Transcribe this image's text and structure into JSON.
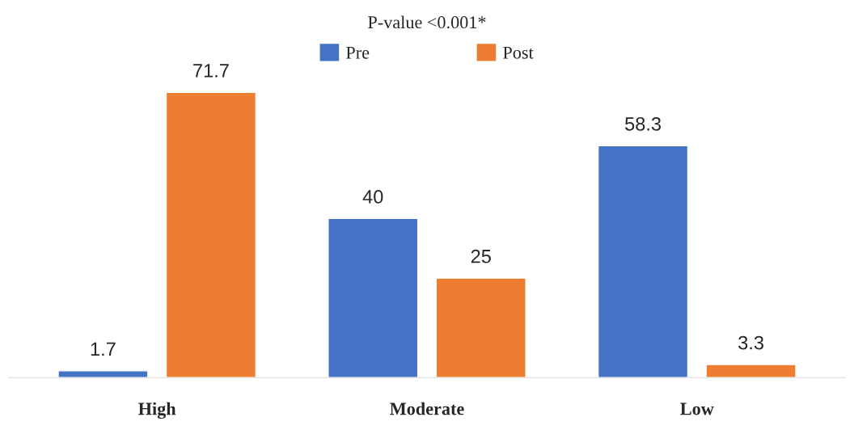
{
  "chart_data": {
    "type": "bar",
    "title": "P-value <0.001*",
    "categories": [
      "High",
      "Moderate",
      "Low"
    ],
    "series": [
      {
        "name": "Pre",
        "color": "#4472c4",
        "values": [
          1.7,
          40,
          58.3
        ]
      },
      {
        "name": "Post",
        "color": "#ed7d31",
        "values": [
          71.7,
          25,
          3.3
        ]
      }
    ],
    "data_labels": true,
    "legend": "top",
    "grid": false
  }
}
